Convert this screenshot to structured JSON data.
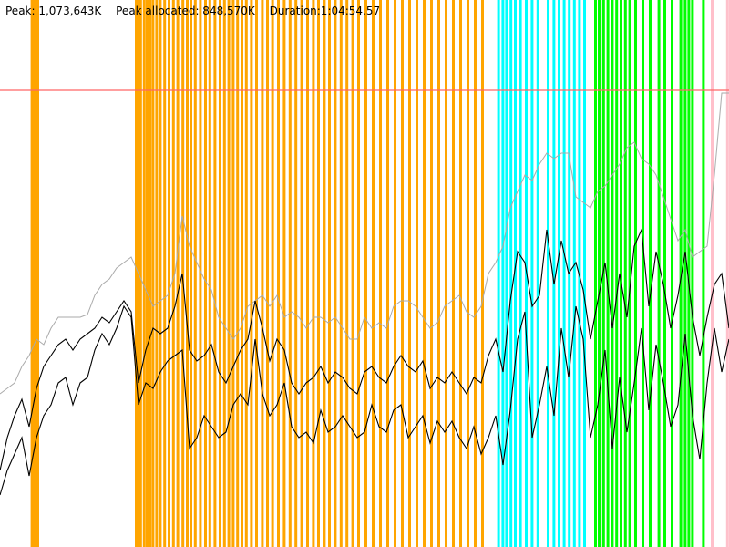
{
  "header": {
    "peak": "Peak: 1,073,643K",
    "peak_allocated": "Peak allocated: 848,570K",
    "duration": "Duration:1:04:54.57"
  },
  "colors": {
    "orange": "#FFA500",
    "cyan": "#00FFFF",
    "green": "#00FF00",
    "pink": "#FFC0CB",
    "limit_line": "#FF6666",
    "peak_line": "#AAAAAA",
    "series": "#000000"
  },
  "chart_data": {
    "type": "line",
    "xlim": [
      0,
      100
    ],
    "ylim": [
      0,
      100
    ],
    "limit_level": 83.5,
    "gc_bands": [
      {
        "color": "orange",
        "x": [
          4.2,
          4.4,
          4.6,
          4.8,
          5.0,
          18.5,
          18.8,
          19.1,
          19.6,
          20.0,
          20.4,
          20.8,
          21.3,
          21.8,
          22.4,
          23.0,
          23.6,
          24.2,
          24.9,
          25.5,
          26.0,
          26.6,
          27.3,
          28.0,
          28.6,
          29.3,
          30.0,
          30.6,
          31.2,
          31.8,
          32.4,
          33.0,
          33.6,
          34.3,
          35.0,
          35.8,
          36.5,
          37.2,
          38.0,
          38.8,
          39.6,
          40.4,
          41.2,
          42.0,
          42.8,
          43.5,
          44.3,
          45.0,
          45.8,
          46.6,
          47.4,
          48.2,
          49.0,
          50.0,
          51.0,
          52.0,
          53.0,
          54.0,
          55.0,
          56.0,
          57.0,
          58.0,
          59.0,
          60.0,
          61.0,
          62.0,
          63.0,
          64.0,
          65.0,
          66.0
        ]
      },
      {
        "color": "cyan",
        "x": [
          68.2,
          68.8,
          69.3,
          69.9,
          70.5,
          71.2,
          72.0,
          72.8,
          73.6,
          75.0,
          75.8,
          76.5,
          77.2,
          77.9,
          78.6,
          79.3,
          80.0
        ]
      },
      {
        "color": "green",
        "x": [
          81.5,
          82.0,
          82.6,
          83.2,
          83.8,
          84.4,
          85.0,
          85.6,
          86.2,
          87.0,
          88.0,
          89.0,
          90.2,
          91.0,
          92.0,
          93.2,
          93.8,
          94.3,
          94.8,
          96.3
        ]
      },
      {
        "color": "pink",
        "x": [
          97.5,
          99.6
        ]
      }
    ],
    "series": [
      {
        "role": "peak",
        "points": [
          [
            0,
            28
          ],
          [
            1,
            29
          ],
          [
            2,
            30
          ],
          [
            3,
            33
          ],
          [
            4,
            35
          ],
          [
            5,
            38
          ],
          [
            6,
            37
          ],
          [
            7,
            40
          ],
          [
            8,
            42
          ],
          [
            9,
            42
          ],
          [
            10,
            42
          ],
          [
            11,
            42
          ],
          [
            12,
            42.5
          ],
          [
            13,
            46
          ],
          [
            14,
            48
          ],
          [
            15,
            49
          ],
          [
            16,
            51
          ],
          [
            17,
            52
          ],
          [
            18,
            53
          ],
          [
            19,
            50
          ],
          [
            20,
            47
          ],
          [
            21,
            44
          ],
          [
            22,
            45
          ],
          [
            23,
            46
          ],
          [
            24,
            50
          ],
          [
            25,
            60.5
          ],
          [
            26,
            55
          ],
          [
            27,
            52
          ],
          [
            28,
            49
          ],
          [
            29,
            47
          ],
          [
            30,
            42
          ],
          [
            31,
            40
          ],
          [
            32,
            38
          ],
          [
            33,
            40
          ],
          [
            34,
            44
          ],
          [
            35,
            45
          ],
          [
            36,
            46
          ],
          [
            37,
            44
          ],
          [
            38,
            46
          ],
          [
            39,
            42
          ],
          [
            40,
            43
          ],
          [
            41,
            42
          ],
          [
            42,
            40
          ],
          [
            43,
            42
          ],
          [
            44,
            42
          ],
          [
            45,
            41
          ],
          [
            46,
            42
          ],
          [
            47,
            40
          ],
          [
            48,
            38
          ],
          [
            49,
            38
          ],
          [
            50,
            42
          ],
          [
            51,
            40
          ],
          [
            52,
            41
          ],
          [
            53,
            40
          ],
          [
            54,
            44
          ],
          [
            55,
            45
          ],
          [
            56,
            45
          ],
          [
            57,
            44
          ],
          [
            58,
            42
          ],
          [
            59,
            40
          ],
          [
            60,
            41
          ],
          [
            61,
            44
          ],
          [
            62,
            45
          ],
          [
            63,
            46
          ],
          [
            64,
            43
          ],
          [
            65,
            42
          ],
          [
            66,
            44
          ],
          [
            67,
            50
          ],
          [
            68,
            52
          ],
          [
            69,
            55
          ],
          [
            70,
            62
          ],
          [
            71,
            65
          ],
          [
            72,
            68
          ],
          [
            73,
            67
          ],
          [
            74,
            70
          ],
          [
            75,
            72
          ],
          [
            76,
            71
          ],
          [
            77,
            72
          ],
          [
            78,
            72
          ],
          [
            79,
            64
          ],
          [
            80,
            63
          ],
          [
            81,
            62
          ],
          [
            82,
            65
          ],
          [
            83,
            66
          ],
          [
            84,
            68
          ],
          [
            85,
            70
          ],
          [
            86,
            73
          ],
          [
            87,
            74
          ],
          [
            88,
            71
          ],
          [
            89,
            70
          ],
          [
            90,
            68
          ],
          [
            91,
            64
          ],
          [
            92,
            60
          ],
          [
            93,
            56
          ],
          [
            94,
            58
          ],
          [
            95,
            53
          ],
          [
            96,
            54
          ],
          [
            97,
            55
          ],
          [
            98,
            68
          ],
          [
            99,
            83
          ],
          [
            100,
            83
          ]
        ]
      },
      {
        "role": "used",
        "points": [
          [
            0,
            9.5
          ],
          [
            1,
            14
          ],
          [
            2,
            17
          ],
          [
            3,
            20
          ],
          [
            4,
            13
          ],
          [
            5,
            20
          ],
          [
            6,
            24
          ],
          [
            7,
            26
          ],
          [
            8,
            30
          ],
          [
            9,
            31
          ],
          [
            10,
            26
          ],
          [
            11,
            30
          ],
          [
            12,
            31
          ],
          [
            13,
            36
          ],
          [
            14,
            39
          ],
          [
            15,
            37
          ],
          [
            16,
            40
          ],
          [
            17,
            44
          ],
          [
            18,
            42
          ],
          [
            19,
            26
          ],
          [
            20,
            30
          ],
          [
            21,
            29
          ],
          [
            22,
            32
          ],
          [
            23,
            34
          ],
          [
            24,
            35
          ],
          [
            25,
            36
          ],
          [
            26,
            18
          ],
          [
            27,
            20
          ],
          [
            28,
            24
          ],
          [
            29,
            22
          ],
          [
            30,
            20
          ],
          [
            31,
            21
          ],
          [
            32,
            26
          ],
          [
            33,
            28
          ],
          [
            34,
            26
          ],
          [
            35,
            38
          ],
          [
            36,
            28
          ],
          [
            37,
            24
          ],
          [
            38,
            26
          ],
          [
            39,
            30
          ],
          [
            40,
            22
          ],
          [
            41,
            20
          ],
          [
            42,
            21
          ],
          [
            43,
            19
          ],
          [
            44,
            25
          ],
          [
            45,
            21
          ],
          [
            46,
            22
          ],
          [
            47,
            24
          ],
          [
            48,
            22
          ],
          [
            49,
            20
          ],
          [
            50,
            21
          ],
          [
            51,
            26
          ],
          [
            52,
            22
          ],
          [
            53,
            21
          ],
          [
            54,
            25
          ],
          [
            55,
            26
          ],
          [
            56,
            20
          ],
          [
            57,
            22
          ],
          [
            58,
            24
          ],
          [
            59,
            19
          ],
          [
            60,
            23
          ],
          [
            61,
            21
          ],
          [
            62,
            23
          ],
          [
            63,
            20
          ],
          [
            64,
            18
          ],
          [
            65,
            22
          ],
          [
            66,
            17
          ],
          [
            67,
            20
          ],
          [
            68,
            24
          ],
          [
            69,
            15
          ],
          [
            70,
            25
          ],
          [
            71,
            38
          ],
          [
            72,
            43
          ],
          [
            73,
            20
          ],
          [
            74,
            26
          ],
          [
            75,
            33
          ],
          [
            76,
            24
          ],
          [
            77,
            40
          ],
          [
            78,
            31
          ],
          [
            79,
            44
          ],
          [
            80,
            38
          ],
          [
            81,
            20
          ],
          [
            82,
            26
          ],
          [
            83,
            36
          ],
          [
            84,
            18
          ],
          [
            85,
            31
          ],
          [
            86,
            21
          ],
          [
            87,
            30
          ],
          [
            88,
            40
          ],
          [
            89,
            25
          ],
          [
            90,
            37
          ],
          [
            91,
            30
          ],
          [
            92,
            22
          ],
          [
            93,
            26
          ],
          [
            94,
            39
          ],
          [
            95,
            24
          ],
          [
            96,
            16
          ],
          [
            97,
            30
          ],
          [
            98,
            40
          ],
          [
            99,
            32
          ],
          [
            100,
            38
          ]
        ]
      },
      {
        "role": "allocated",
        "points": [
          [
            0,
            14
          ],
          [
            1,
            20
          ],
          [
            2,
            24
          ],
          [
            3,
            27
          ],
          [
            4,
            22
          ],
          [
            5,
            29
          ],
          [
            6,
            33
          ],
          [
            7,
            35
          ],
          [
            8,
            37
          ],
          [
            9,
            38
          ],
          [
            10,
            36
          ],
          [
            11,
            38
          ],
          [
            12,
            39
          ],
          [
            13,
            40
          ],
          [
            14,
            42
          ],
          [
            15,
            41
          ],
          [
            16,
            43
          ],
          [
            17,
            45
          ],
          [
            18,
            43
          ],
          [
            19,
            30
          ],
          [
            20,
            36
          ],
          [
            21,
            40
          ],
          [
            22,
            39
          ],
          [
            23,
            40
          ],
          [
            24,
            44
          ],
          [
            25,
            50
          ],
          [
            26,
            36
          ],
          [
            27,
            34
          ],
          [
            28,
            35
          ],
          [
            29,
            37
          ],
          [
            30,
            32
          ],
          [
            31,
            30
          ],
          [
            32,
            33
          ],
          [
            33,
            36
          ],
          [
            34,
            38
          ],
          [
            35,
            45
          ],
          [
            36,
            40
          ],
          [
            37,
            34
          ],
          [
            38,
            38
          ],
          [
            39,
            36
          ],
          [
            40,
            30
          ],
          [
            41,
            28
          ],
          [
            42,
            30
          ],
          [
            43,
            31
          ],
          [
            44,
            33
          ],
          [
            45,
            30
          ],
          [
            46,
            32
          ],
          [
            47,
            31
          ],
          [
            48,
            29
          ],
          [
            49,
            28
          ],
          [
            50,
            32
          ],
          [
            51,
            33
          ],
          [
            52,
            31
          ],
          [
            53,
            30
          ],
          [
            54,
            33
          ],
          [
            55,
            35
          ],
          [
            56,
            33
          ],
          [
            57,
            32
          ],
          [
            58,
            34
          ],
          [
            59,
            29
          ],
          [
            60,
            31
          ],
          [
            61,
            30
          ],
          [
            62,
            32
          ],
          [
            63,
            30
          ],
          [
            64,
            28
          ],
          [
            65,
            31
          ],
          [
            66,
            30
          ],
          [
            67,
            35
          ],
          [
            68,
            38
          ],
          [
            69,
            32
          ],
          [
            70,
            45
          ],
          [
            71,
            54
          ],
          [
            72,
            52
          ],
          [
            73,
            44
          ],
          [
            74,
            46
          ],
          [
            75,
            58
          ],
          [
            76,
            48
          ],
          [
            77,
            56
          ],
          [
            78,
            50
          ],
          [
            79,
            52
          ],
          [
            80,
            47
          ],
          [
            81,
            38
          ],
          [
            82,
            45
          ],
          [
            83,
            52
          ],
          [
            84,
            40
          ],
          [
            85,
            50
          ],
          [
            86,
            42
          ],
          [
            87,
            55
          ],
          [
            88,
            58
          ],
          [
            89,
            44
          ],
          [
            90,
            54
          ],
          [
            91,
            48
          ],
          [
            92,
            40
          ],
          [
            93,
            46
          ],
          [
            94,
            54
          ],
          [
            95,
            42
          ],
          [
            96,
            35
          ],
          [
            97,
            42
          ],
          [
            98,
            48
          ],
          [
            99,
            50
          ],
          [
            100,
            40
          ]
        ]
      }
    ]
  }
}
